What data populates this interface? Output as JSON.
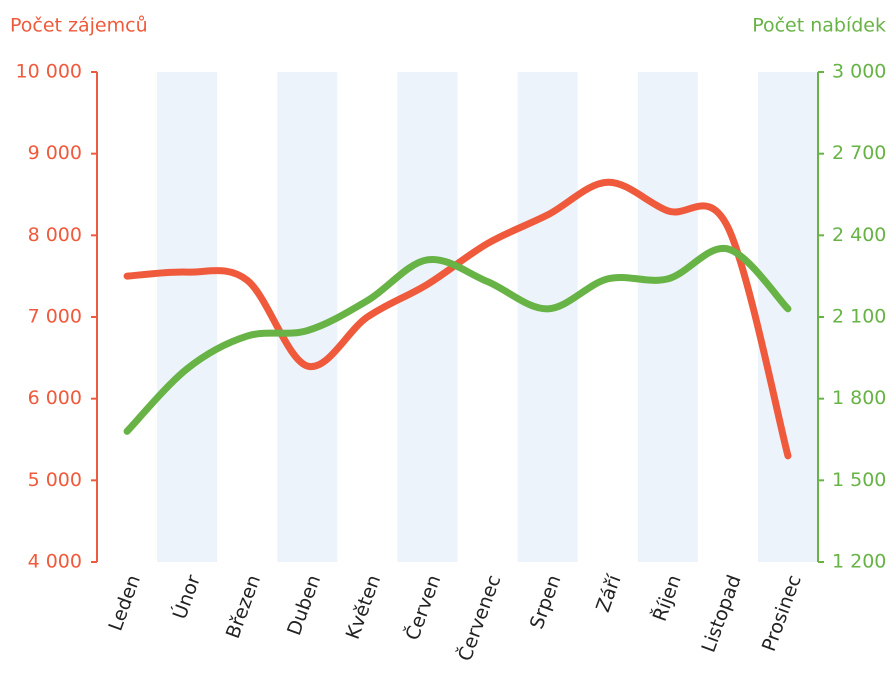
{
  "chart_data": {
    "type": "line",
    "categories": [
      "Leden",
      "Únor",
      "Březen",
      "Duben",
      "Květen",
      "Červen",
      "Červenec",
      "Srpen",
      "Září",
      "Říjen",
      "Listopad",
      "Prosinec"
    ],
    "y_label": "Počet zájemců",
    "y2_label": "Počet nabídek",
    "series": [
      {
        "name": "Počet zájemců",
        "color": "#f05a3c",
        "axis": "y",
        "values": [
          7500,
          7550,
          7450,
          6400,
          7000,
          7400,
          7900,
          8250,
          8650,
          8300,
          8100,
          5300
        ]
      },
      {
        "name": "Počet nabídek",
        "color": "#67b346",
        "axis": "y2",
        "values": [
          1680,
          1910,
          2030,
          2050,
          2160,
          2310,
          2230,
          2130,
          2240,
          2240,
          2350,
          2130
        ]
      }
    ],
    "ylim": [
      4000,
      10000
    ],
    "yticks": [
      {
        "value": 4000,
        "label": "4 000"
      },
      {
        "value": 5000,
        "label": "5 000"
      },
      {
        "value": 6000,
        "label": "6 000"
      },
      {
        "value": 7000,
        "label": "7 000"
      },
      {
        "value": 8000,
        "label": "8 000"
      },
      {
        "value": 9000,
        "label": "9 000"
      },
      {
        "value": 10000,
        "label": "10 000"
      }
    ],
    "y2lim": [
      1200,
      3000
    ],
    "y2ticks": [
      {
        "value": 1200,
        "label": "1 200"
      },
      {
        "value": 1500,
        "label": "1 500"
      },
      {
        "value": 1800,
        "label": "1 800"
      },
      {
        "value": 2100,
        "label": "2 100"
      },
      {
        "value": 2400,
        "label": "2 400"
      },
      {
        "value": 2700,
        "label": "2 700"
      },
      {
        "value": 3000,
        "label": "3 000"
      }
    ]
  }
}
